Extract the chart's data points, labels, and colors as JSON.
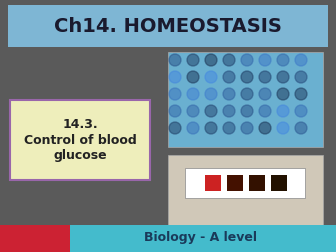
{
  "bg_color": "#5a5a5a",
  "title_text": "Ch14. HOMEOSTASIS",
  "title_bg": "#7eb6d4",
  "title_color": "#1a1a2e",
  "subtitle_text": "14.3.\nControl of blood\nglucose",
  "subtitle_box_bg": "#eeeebb",
  "subtitle_box_border": "#9966aa",
  "footer_left_color": "#cc2233",
  "footer_right_color": "#44bbcc",
  "footer_text": "Biology - A level",
  "footer_text_color": "#1a3a5a"
}
